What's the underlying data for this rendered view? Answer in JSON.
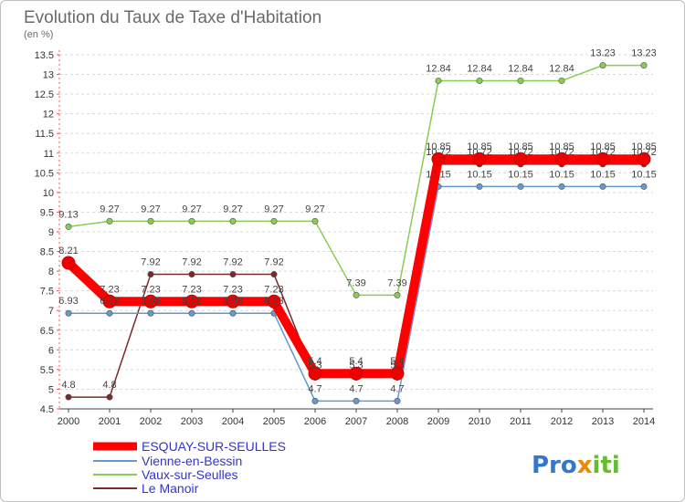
{
  "chart_data": {
    "type": "line",
    "title": "Evolution du Taux de Taxe d'Habitation",
    "subtitle": "(en %)",
    "x": [
      "2000",
      "2001",
      "2002",
      "2003",
      "2004",
      "2005",
      "2006",
      "2007",
      "2008",
      "2009",
      "2010",
      "2011",
      "2012",
      "2013",
      "2014"
    ],
    "ylim": [
      4.5,
      13.5
    ],
    "yticks": [
      "4.5",
      "5",
      "5.5",
      "6",
      "6.5",
      "7",
      "7.5",
      "8",
      "8.5",
      "9",
      "9.5",
      "10",
      "10.5",
      "11",
      "11.5",
      "12",
      "12.5",
      "13",
      "13.5"
    ],
    "series": [
      {
        "name": "ESQUAY-SUR-SEULLES",
        "color": "#ff0000",
        "values": [
          8.21,
          7.23,
          7.23,
          7.23,
          7.23,
          7.23,
          5.4,
          5.4,
          5.4,
          10.85,
          10.85,
          10.85,
          10.85,
          10.85,
          10.85
        ],
        "labels": [
          "8.21",
          "7.23",
          "7.23",
          "7.23",
          "7.23",
          "7.23",
          "5.4",
          "5.4",
          "5.4",
          "10.85",
          "10.85",
          "10.85",
          "10.85",
          "10.85",
          "10.85"
        ]
      },
      {
        "name": "Vienne-en-Bessin",
        "color": "#6699cc",
        "values": [
          6.93,
          6.93,
          6.93,
          6.93,
          6.93,
          6.93,
          4.7,
          4.7,
          4.7,
          10.15,
          10.15,
          10.15,
          10.15,
          10.15,
          10.15
        ],
        "labels": [
          "6.93",
          "6.93",
          "6.93",
          "6.93",
          "6.93",
          "6.93",
          "4.7",
          "4.7",
          "4.7",
          "10.15",
          "10.15",
          "10.15",
          "10.15",
          "10.15",
          "10.15"
        ]
      },
      {
        "name": "Vaux-sur-Seulles",
        "color": "#88cc55",
        "values": [
          9.13,
          9.27,
          9.27,
          9.27,
          9.27,
          9.27,
          9.27,
          7.39,
          7.39,
          12.84,
          12.84,
          12.84,
          12.84,
          13.23,
          13.23
        ],
        "labels": [
          "9.13",
          "9.27",
          "9.27",
          "9.27",
          "9.27",
          "9.27",
          "9.27",
          "7.39",
          "7.39",
          "12.84",
          "12.84",
          "12.84",
          "12.84",
          "13.23",
          "13.23"
        ]
      },
      {
        "name": "Le Manoir",
        "color": "#7a2a2a",
        "values": [
          4.8,
          4.8,
          7.92,
          7.92,
          7.92,
          7.92,
          5.3,
          5.3,
          5.3,
          10.72,
          10.72,
          10.72,
          10.72,
          10.72,
          10.72
        ],
        "labels": [
          "4.8",
          "4.8",
          "7.92",
          "7.92",
          "7.92",
          "7.92",
          "5.3",
          "5.3",
          "5.3",
          "10.72",
          "10.72",
          "10.72",
          "10.72",
          "10.72",
          "10.72"
        ]
      }
    ]
  },
  "logo": {
    "p1": "Pro",
    "p2": "x",
    "p3": "iti"
  }
}
